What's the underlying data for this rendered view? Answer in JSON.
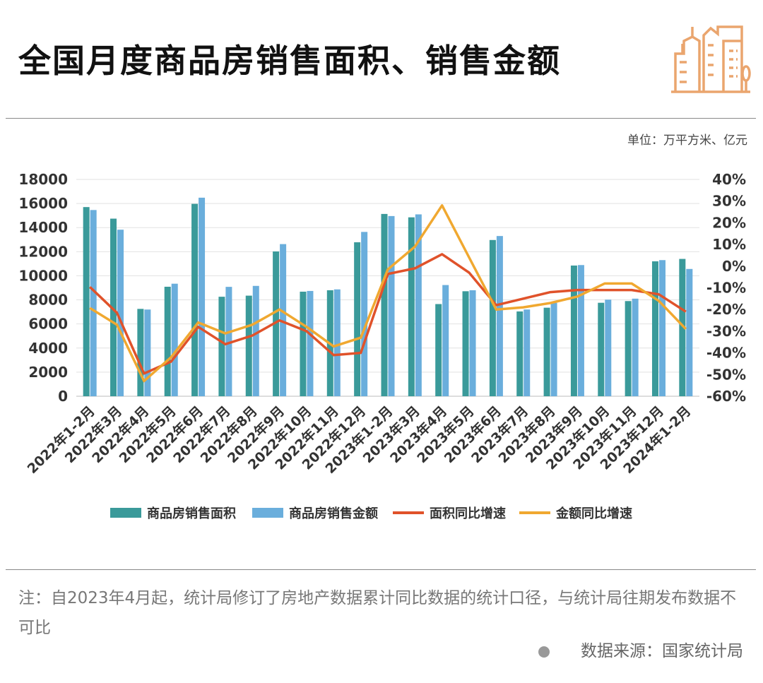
{
  "title": "全国月度商品房销售面积、销售金额",
  "unit_label": "单位：万平方米、亿元",
  "note": "注：自2023年4月起，统计局修订了房地产数据累计同比数据的统计口径，与统计局往期发布数据不可比",
  "source": "数据来源：国家统计局",
  "icon": "building-icon",
  "colors": {
    "area_bar": "#3a9a9a",
    "amount_bar": "#6aaedc",
    "area_yoy": "#e0522a",
    "amount_yoy": "#f0a830",
    "logo": "#eaa56e"
  },
  "chart_data": {
    "type": "bar",
    "categories": [
      "2022年1-2月",
      "2022年3月",
      "2022年4月",
      "2022年5月",
      "2022年6月",
      "2022年7月",
      "2022年8月",
      "2022年9月",
      "2022年10月",
      "2022年11月",
      "2022年12月",
      "2023年1-2月",
      "2023年3月",
      "2023年4月",
      "2023年5月",
      "2023年6月",
      "2023年7月",
      "2023年8月",
      "2023年9月",
      "2023年10月",
      "2023年11月",
      "2023年12月",
      "2024年1-2月"
    ],
    "series": [
      {
        "name": "商品房销售面积",
        "type": "bar",
        "axis": "left",
        "values": [
          15703,
          14743,
          7251,
          9090,
          15970,
          8260,
          8350,
          12020,
          8680,
          8800,
          12780,
          15133,
          14852,
          7652,
          8716,
          12970,
          7040,
          7350,
          10850,
          7759,
          7900,
          11200,
          11400
        ]
      },
      {
        "name": "商品房销售金额",
        "type": "bar",
        "axis": "left",
        "values": [
          15459,
          13825,
          7198,
          9342,
          16482,
          9080,
          9160,
          12630,
          8740,
          8870,
          13640,
          14958,
          15098,
          9231,
          8800,
          13300,
          7200,
          7750,
          10890,
          8020,
          8100,
          11300,
          10566
        ]
      },
      {
        "name": "面积同比增速",
        "type": "line",
        "axis": "right",
        "values": [
          -9.6,
          -21.5,
          -49.5,
          -44.0,
          -28.0,
          -36.0,
          -32.0,
          -25.0,
          -30.0,
          -41.0,
          -40.0,
          -3.6,
          -1.0,
          5.5,
          -3.0,
          -18.0,
          -15.0,
          -12.0,
          -11.0,
          -11.0,
          -11.0,
          -13.0,
          -21.0
        ]
      },
      {
        "name": "金额同比增速",
        "type": "line",
        "axis": "right",
        "values": [
          -19.3,
          -27.0,
          -53.0,
          -42.0,
          -26.0,
          -31.0,
          -27.0,
          -20.0,
          -28.0,
          -37.0,
          -33.0,
          -1.5,
          9.0,
          28.0,
          4.0,
          -20.0,
          -19.0,
          -17.0,
          -14.0,
          -8.0,
          -8.0,
          -16.0,
          -29.0
        ]
      }
    ],
    "left_axis": {
      "ylim": [
        0,
        18000
      ],
      "ticks": [
        "0",
        "2000",
        "4000",
        "6000",
        "8000",
        "10000",
        "12000",
        "14000",
        "16000",
        "18000"
      ]
    },
    "right_axis": {
      "ylim": [
        -60,
        40
      ],
      "ticks": [
        "-60%",
        "-50%",
        "-40%",
        "-30%",
        "-20%",
        "-10%",
        "0%",
        "10%",
        "20%",
        "30%",
        "40%"
      ]
    },
    "grid": true,
    "legend_position": "bottom"
  }
}
